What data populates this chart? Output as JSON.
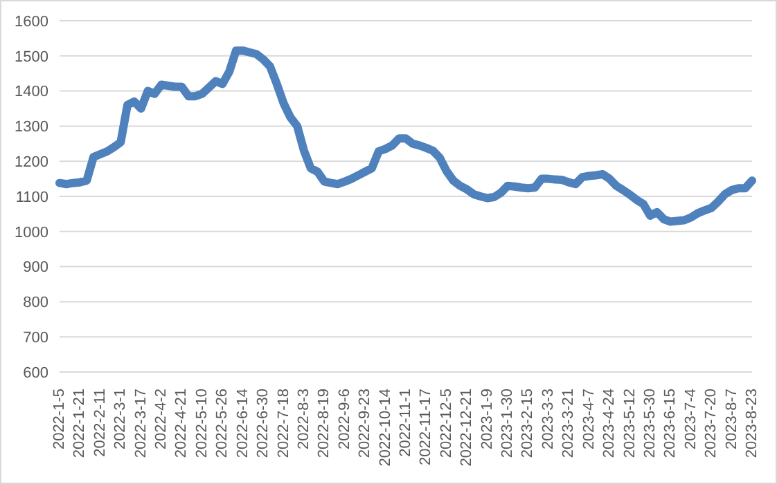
{
  "chart_data": {
    "type": "line",
    "categories": [
      "2022-1-5",
      null,
      null,
      "2022-1-21",
      null,
      null,
      "2022-2-11",
      null,
      null,
      "2022-3-1",
      null,
      null,
      "2022-3-17",
      null,
      null,
      "2022-4-2",
      null,
      null,
      "2022-4-21",
      null,
      null,
      "2022-5-10",
      null,
      null,
      "2022-5-26",
      null,
      null,
      "2022-6-14",
      null,
      null,
      "2022-6-30",
      null,
      null,
      "2022-7-18",
      null,
      null,
      "2022-8-3",
      null,
      null,
      "2022-8-19",
      null,
      null,
      "2022-9-6",
      null,
      null,
      "2022-9-23",
      null,
      null,
      "2022-10-14",
      null,
      null,
      "2022-11-1",
      null,
      null,
      "2022-11-17",
      null,
      null,
      "2022-12-5",
      null,
      null,
      "2022-12-21",
      null,
      null,
      "2023-1-9",
      null,
      null,
      "2023-1-30",
      null,
      null,
      "2023-2-15",
      null,
      null,
      "2023-3-3",
      null,
      null,
      "2023-3-21",
      null,
      null,
      "2023-4-7",
      null,
      null,
      "2023-4-24",
      null,
      null,
      "2023-5-12",
      null,
      null,
      "2023-5-30",
      null,
      null,
      "2023-6-15",
      null,
      null,
      "2023-7-4",
      null,
      null,
      "2023-7-20",
      null,
      null,
      "2023-8-7",
      null,
      null,
      "2023-8-23"
    ],
    "series": [
      {
        "color": "#4f81bd",
        "values": [
          1138,
          1135,
          1138,
          1140,
          1145,
          1212,
          1220,
          1228,
          1240,
          1254,
          1360,
          1370,
          1350,
          1400,
          1392,
          1418,
          1415,
          1412,
          1412,
          1385,
          1385,
          1392,
          1410,
          1428,
          1420,
          1455,
          1515,
          1515,
          1510,
          1505,
          1490,
          1470,
          1420,
          1365,
          1325,
          1300,
          1230,
          1180,
          1170,
          1142,
          1138,
          1135,
          1142,
          1150,
          1160,
          1170,
          1180,
          1228,
          1235,
          1245,
          1265,
          1265,
          1250,
          1245,
          1238,
          1230,
          1210,
          1172,
          1145,
          1130,
          1120,
          1106,
          1100,
          1095,
          1098,
          1110,
          1130,
          1128,
          1125,
          1123,
          1125,
          1150,
          1150,
          1148,
          1147,
          1140,
          1135,
          1155,
          1158,
          1160,
          1163,
          1150,
          1130,
          1118,
          1105,
          1090,
          1078,
          1045,
          1055,
          1035,
          1028,
          1030,
          1032,
          1040,
          1052,
          1060,
          1067,
          1085,
          1106,
          1118,
          1123,
          1123,
          1145
        ]
      }
    ],
    "ylim": [
      600,
      1600
    ],
    "yticks": [
      600,
      700,
      800,
      900,
      1000,
      1100,
      1200,
      1300,
      1400,
      1500,
      1600
    ],
    "grid": "y",
    "legend": false,
    "marker": "none",
    "line_style": "solid"
  }
}
